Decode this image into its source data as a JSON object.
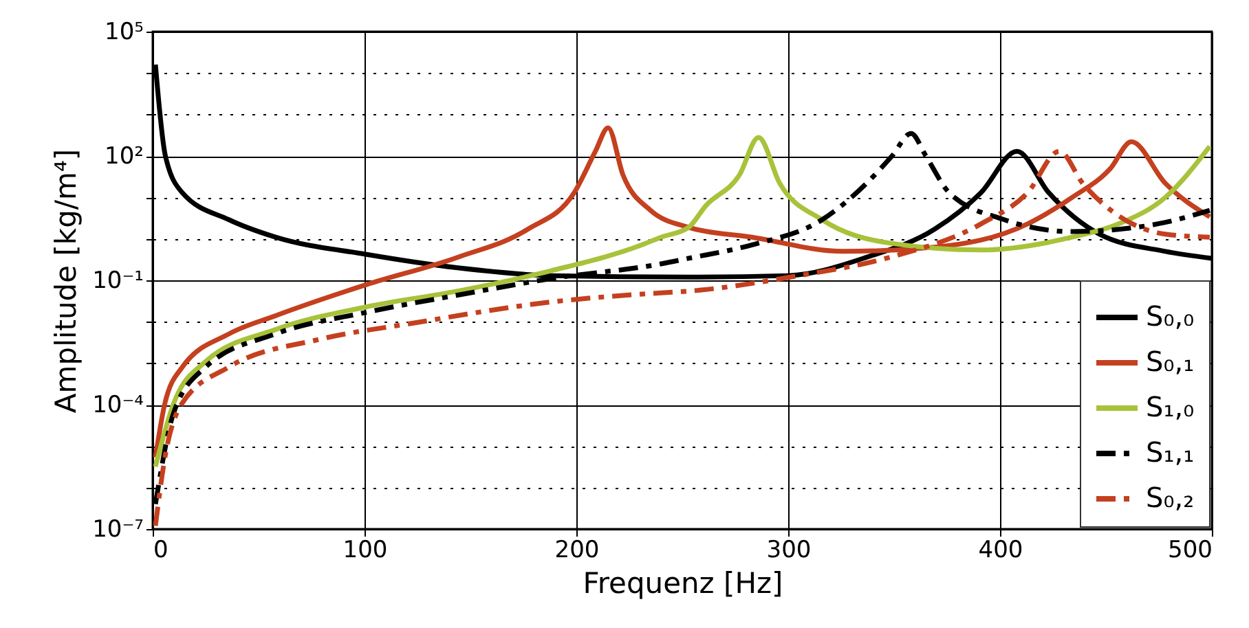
{
  "chart_data": {
    "type": "line",
    "xlabel": "Frequenz [Hz]",
    "ylabel": "Amplitude [kg/m⁴]",
    "log": "y",
    "xlim": [
      0,
      500
    ],
    "xticks": [
      0,
      100,
      200,
      300,
      400,
      500
    ],
    "ylim": [
      1e-07,
      100000
    ],
    "yticks": [
      {
        "value": 1e-07,
        "label": "10⁻⁷"
      },
      {
        "value": 1e-06,
        "label": null
      },
      {
        "value": 1e-05,
        "label": null
      },
      {
        "value": 0.0001,
        "label": "10⁻⁴"
      },
      {
        "value": 0.001,
        "label": null
      },
      {
        "value": 0.01,
        "label": null
      },
      {
        "value": 0.1,
        "label": "10⁻¹"
      },
      {
        "value": 1,
        "label": null
      },
      {
        "value": 10,
        "label": null
      },
      {
        "value": 100,
        "label": "10²"
      },
      {
        "value": 1000,
        "label": null
      },
      {
        "value": 10000,
        "label": null
      },
      {
        "value": 100000,
        "label": "10⁵"
      }
    ],
    "grid": true,
    "legend": "bottom right",
    "series": [
      {
        "name": "S₀,₀",
        "color": "#000000",
        "line_style": "solid",
        "x": [
          1.3,
          6,
          14,
          36,
          58,
          100,
          144,
          188,
          253,
          300,
          337,
          369,
          391,
          408,
          423,
          447,
          478,
          500
        ],
        "values": [
          16000,
          100,
          13,
          2.9,
          1.1,
          0.43,
          0.2,
          0.13,
          0.12,
          0.13,
          0.36,
          1.7,
          13,
          130,
          13,
          1.3,
          0.5,
          0.34
        ]
      },
      {
        "name": "S₀,₁",
        "color": "#c4401f",
        "line_style": "solid",
        "x": [
          1.3,
          5.8,
          14,
          36,
          58,
          101,
          144,
          177,
          199,
          209,
          215,
          222,
          235,
          253,
          283,
          326,
          369,
          413,
          434,
          452,
          462,
          478,
          499
        ],
        "values": [
          5.4e-06,
          0.00011,
          0.00081,
          0.0051,
          0.014,
          0.079,
          0.36,
          1.7,
          13,
          130,
          480,
          35,
          4.9,
          1.9,
          1.1,
          0.5,
          0.63,
          2.3,
          10,
          49,
          220,
          22,
          3.4
        ]
      },
      {
        "name": "S₁,₀",
        "color": "#a8c23a",
        "line_style": "solid",
        "x": [
          1.3,
          10,
          25,
          58,
          101,
          144,
          188,
          231,
          240,
          253,
          261,
          277,
          286,
          296,
          316,
          348,
          391,
          434,
          456,
          478,
          499
        ],
        "values": [
          3.2e-06,
          0.00011,
          0.0011,
          0.0065,
          0.023,
          0.055,
          0.17,
          0.72,
          1.1,
          1.9,
          6.2,
          35,
          280,
          22,
          2.9,
          0.79,
          0.54,
          1.1,
          2.3,
          10,
          170
        ]
      },
      {
        "name": "S₁,₁",
        "color": "#000000",
        "line_style": "dashdot",
        "x": [
          1.3,
          10,
          25,
          58,
          101,
          144,
          188,
          240,
          253,
          283,
          316,
          337,
          349,
          358,
          365,
          376,
          402,
          434,
          456,
          478,
          499
        ],
        "values": [
          4e-07,
          6.6e-05,
          0.00081,
          0.0051,
          0.017,
          0.044,
          0.11,
          0.25,
          0.34,
          0.72,
          2.9,
          22,
          100,
          350,
          100,
          13,
          2.9,
          1.5,
          1.7,
          2.5,
          4.9
        ]
      },
      {
        "name": "S₀,₂",
        "color": "#c4401f",
        "line_style": "dashdot",
        "x": [
          1.3,
          5.8,
          14,
          36,
          79,
          123,
          188,
          240,
          253,
          305,
          348,
          391,
          413,
          428,
          439,
          456,
          478,
          499
        ],
        "values": [
          1.2e-07,
          5.4e-06,
          0.00011,
          0.00081,
          0.0038,
          0.0093,
          0.03,
          0.05,
          0.055,
          0.13,
          0.36,
          2.3,
          13,
          130,
          22,
          3.6,
          1.3,
          1.1
        ]
      }
    ]
  }
}
